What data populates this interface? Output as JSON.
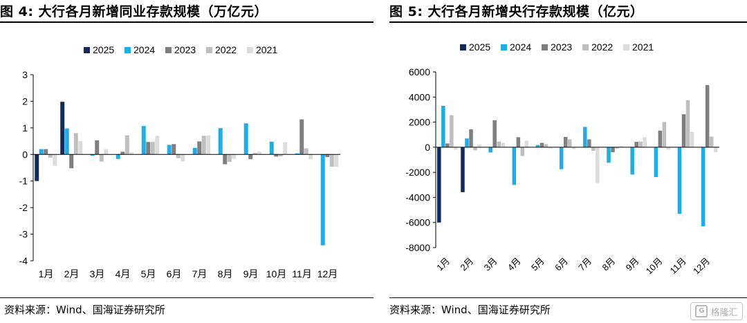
{
  "page": {
    "watermark": "格隆汇"
  },
  "left": {
    "title": "图 4:  大行各月新增同业存款规模（万亿元）",
    "source": "资料来源：Wind、国海证券研究所"
  },
  "right": {
    "title": "图 5:  大行各月新增央行存款规模（亿元）",
    "source": "资料来源：Wind、国海证券研究所"
  },
  "colors": {
    "2025": "#152a5c",
    "2024": "#1eaee6",
    "2023": "#7f7f7f",
    "2022": "#bfbfbf",
    "2021": "#dcdcdc"
  },
  "chart_data": [
    {
      "type": "bar",
      "title": "大行各月新增同业存款规模（万亿元）",
      "categories": [
        "1月",
        "2月",
        "3月",
        "4月",
        "5月",
        "6月",
        "7月",
        "8月",
        "9月",
        "10月",
        "11月",
        "12月"
      ],
      "ylim": [
        -4,
        3
      ],
      "yticks": [
        3,
        2,
        1,
        0,
        -1,
        -2,
        -3,
        -4
      ],
      "legend_position": "top",
      "series": [
        {
          "name": "2025",
          "color": "#152a5c",
          "values": [
            -1.0,
            1.98,
            null,
            null,
            null,
            null,
            null,
            null,
            null,
            null,
            null,
            null
          ]
        },
        {
          "name": "2024",
          "color": "#1eaee6",
          "values": [
            0.2,
            0.98,
            -0.05,
            -0.17,
            1.07,
            0.36,
            0.25,
            0.99,
            1.17,
            0.48,
            0.04,
            -3.42
          ]
        },
        {
          "name": "2023",
          "color": "#7f7f7f",
          "values": [
            0.2,
            -0.52,
            0.53,
            0.1,
            0.47,
            0.39,
            0.49,
            -0.37,
            -0.18,
            -0.08,
            1.32,
            -0.1
          ]
        },
        {
          "name": "2022",
          "color": "#bfbfbf",
          "values": [
            -0.12,
            0.8,
            -0.27,
            0.72,
            0.47,
            -0.14,
            0.7,
            -0.28,
            0.06,
            -0.07,
            0.23,
            -0.46
          ]
        },
        {
          "name": "2021",
          "color": "#dcdcdc",
          "values": [
            -0.43,
            0.5,
            0.2,
            0.08,
            0.7,
            -0.26,
            0.72,
            -0.17,
            0.1,
            0.46,
            -0.18,
            -0.46
          ]
        }
      ]
    },
    {
      "type": "bar",
      "title": "大行各月新增央行存款规模（亿元）",
      "categories": [
        "1月",
        "2月",
        "3月",
        "4月",
        "5月",
        "6月",
        "7月",
        "8月",
        "9月",
        "10月",
        "11月",
        "12月"
      ],
      "ylim": [
        -8000,
        6000
      ],
      "yticks": [
        6000,
        4000,
        2000,
        0,
        -2000,
        -4000,
        -6000,
        -8000
      ],
      "legend_position": "top",
      "series": [
        {
          "name": "2025",
          "color": "#152a5c",
          "values": [
            -6000,
            -3580,
            null,
            null,
            null,
            null,
            null,
            null,
            null,
            null,
            null,
            null
          ]
        },
        {
          "name": "2024",
          "color": "#1eaee6",
          "values": [
            3300,
            700,
            -420,
            -3000,
            180,
            -1750,
            1620,
            -1230,
            -2180,
            -2380,
            -5300,
            -6300
          ]
        },
        {
          "name": "2023",
          "color": "#7f7f7f",
          "values": [
            300,
            1420,
            2150,
            800,
            350,
            820,
            630,
            -400,
            430,
            1320,
            2630,
            4950
          ]
        },
        {
          "name": "2022",
          "color": "#bfbfbf",
          "values": [
            2550,
            -250,
            450,
            -700,
            250,
            620,
            -280,
            -100,
            450,
            2020,
            3750,
            850
          ]
        },
        {
          "name": "2021",
          "color": "#dcdcdc",
          "values": [
            -200,
            230,
            350,
            520,
            -100,
            -150,
            -2850,
            100,
            800,
            -200,
            1230,
            -400
          ]
        }
      ]
    }
  ]
}
